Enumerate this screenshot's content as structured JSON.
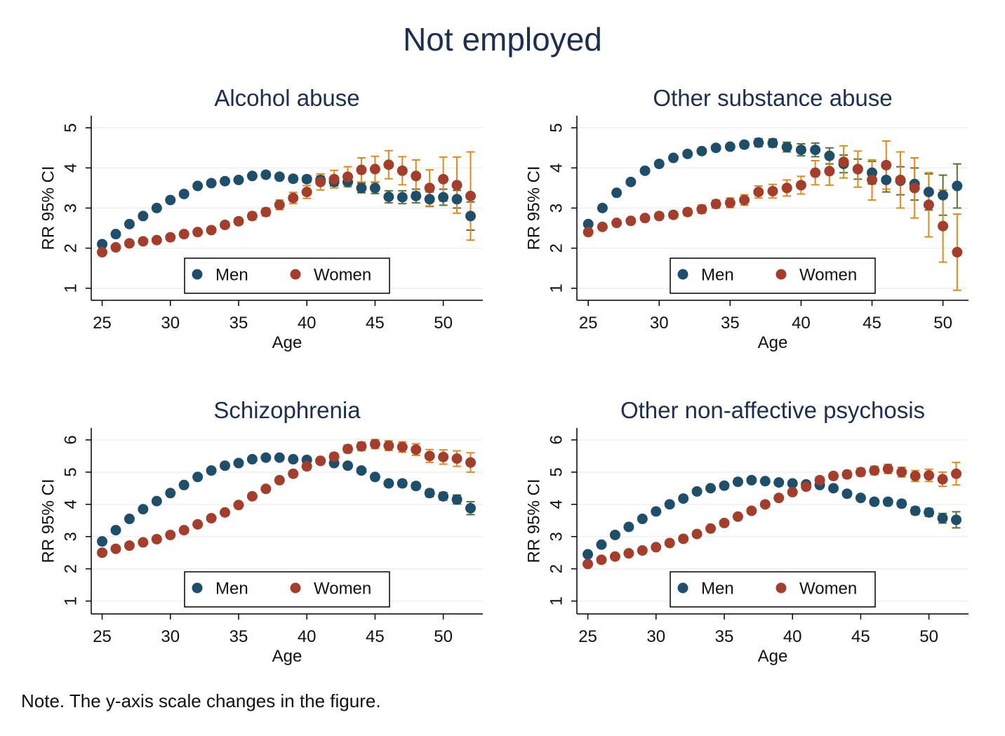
{
  "title": "Not employed",
  "note": "Note. The y-axis scale changes in the figure.",
  "chart_data": [
    {
      "type": "scatter",
      "title": "Alcohol abuse",
      "x_label": "Age",
      "y_label": "RR 95% CI",
      "x": [
        25,
        26,
        27,
        28,
        29,
        30,
        31,
        32,
        33,
        34,
        35,
        36,
        37,
        38,
        39,
        40,
        41,
        42,
        43,
        44,
        45,
        46,
        47,
        48,
        49,
        50,
        51,
        52
      ],
      "xlim": [
        24.2,
        52.9
      ],
      "xticks": [
        25,
        30,
        35,
        40,
        45,
        50
      ],
      "ylim": [
        0.7,
        5.3
      ],
      "yticks": [
        1,
        2,
        3,
        4,
        5
      ],
      "grid": true,
      "legend": "bottom",
      "series": [
        {
          "name": "Men",
          "color": "#1f4e6b",
          "error_color": "#55752f",
          "values": [
            2.1,
            2.35,
            2.6,
            2.8,
            3.0,
            3.2,
            3.35,
            3.55,
            3.62,
            3.67,
            3.7,
            3.8,
            3.83,
            3.78,
            3.73,
            3.72,
            3.7,
            3.65,
            3.65,
            3.5,
            3.5,
            3.28,
            3.27,
            3.3,
            3.22,
            3.27,
            3.22,
            2.8
          ],
          "errors": [
            0.05,
            0.05,
            0.05,
            0.05,
            0.05,
            0.05,
            0.05,
            0.05,
            0.05,
            0.05,
            0.06,
            0.06,
            0.07,
            0.07,
            0.08,
            0.08,
            0.1,
            0.1,
            0.12,
            0.12,
            0.14,
            0.15,
            0.16,
            0.17,
            0.18,
            0.2,
            0.22,
            0.35
          ]
        },
        {
          "name": "Women",
          "color": "#a33d2c",
          "error_color": "#e08a1e",
          "values": [
            1.9,
            2.02,
            2.12,
            2.17,
            2.2,
            2.27,
            2.35,
            2.4,
            2.45,
            2.58,
            2.67,
            2.8,
            2.9,
            3.08,
            3.25,
            3.4,
            3.65,
            3.72,
            3.78,
            3.95,
            3.97,
            4.08,
            3.93,
            3.8,
            3.5,
            3.72,
            3.57,
            3.3
          ],
          "errors": [
            0.04,
            0.04,
            0.04,
            0.04,
            0.05,
            0.05,
            0.05,
            0.06,
            0.06,
            0.07,
            0.08,
            0.09,
            0.1,
            0.12,
            0.14,
            0.16,
            0.2,
            0.22,
            0.25,
            0.3,
            0.32,
            0.35,
            0.35,
            0.4,
            0.45,
            0.55,
            0.7,
            1.1
          ]
        }
      ]
    },
    {
      "type": "scatter",
      "title": "Other substance abuse",
      "x_label": "Age",
      "y_label": "RR 95% CI",
      "x": [
        25,
        26,
        27,
        28,
        29,
        30,
        31,
        32,
        33,
        34,
        35,
        36,
        37,
        38,
        39,
        40,
        41,
        42,
        43,
        44,
        45,
        46,
        47,
        48,
        49,
        50,
        51
      ],
      "xlim": [
        24.2,
        51.8
      ],
      "xticks": [
        25,
        30,
        35,
        40,
        45,
        50
      ],
      "ylim": [
        0.7,
        5.3
      ],
      "yticks": [
        1,
        2,
        3,
        4,
        5
      ],
      "grid": true,
      "legend": "bottom",
      "series": [
        {
          "name": "Men",
          "color": "#1f4e6b",
          "error_color": "#55752f",
          "values": [
            2.6,
            3.0,
            3.38,
            3.65,
            3.93,
            4.1,
            4.25,
            4.35,
            4.42,
            4.5,
            4.53,
            4.58,
            4.63,
            4.62,
            4.52,
            4.45,
            4.45,
            4.3,
            4.1,
            3.97,
            3.88,
            3.7,
            3.68,
            3.6,
            3.4,
            3.32,
            3.55
          ],
          "errors": [
            0.05,
            0.05,
            0.05,
            0.05,
            0.05,
            0.05,
            0.05,
            0.05,
            0.06,
            0.06,
            0.07,
            0.08,
            0.1,
            0.1,
            0.12,
            0.15,
            0.17,
            0.2,
            0.22,
            0.25,
            0.28,
            0.3,
            0.35,
            0.4,
            0.45,
            0.5,
            0.55
          ]
        },
        {
          "name": "Women",
          "color": "#a33d2c",
          "error_color": "#e08a1e",
          "values": [
            2.4,
            2.53,
            2.63,
            2.68,
            2.75,
            2.8,
            2.83,
            2.9,
            2.97,
            3.1,
            3.13,
            3.2,
            3.4,
            3.42,
            3.5,
            3.57,
            3.88,
            3.92,
            4.15,
            3.97,
            3.7,
            4.07,
            3.7,
            3.5,
            3.08,
            2.55,
            1.9
          ],
          "errors": [
            0.06,
            0.06,
            0.06,
            0.07,
            0.07,
            0.08,
            0.08,
            0.09,
            0.1,
            0.1,
            0.12,
            0.13,
            0.15,
            0.17,
            0.2,
            0.22,
            0.3,
            0.35,
            0.4,
            0.45,
            0.5,
            0.6,
            0.7,
            0.75,
            0.8,
            0.9,
            0.95
          ]
        }
      ]
    },
    {
      "type": "scatter",
      "title": "Schizophrenia",
      "x_label": "Age",
      "y_label": "RR 95% CI",
      "x": [
        25,
        26,
        27,
        28,
        29,
        30,
        31,
        32,
        33,
        34,
        35,
        36,
        37,
        38,
        39,
        40,
        41,
        42,
        43,
        44,
        45,
        46,
        47,
        48,
        49,
        50,
        51,
        52
      ],
      "xlim": [
        24.2,
        52.9
      ],
      "xticks": [
        25,
        30,
        35,
        40,
        45,
        50
      ],
      "ylim": [
        0.6,
        6.37
      ],
      "yticks": [
        1,
        2,
        3,
        4,
        5,
        6
      ],
      "grid": true,
      "legend": "bottom",
      "series": [
        {
          "name": "Men",
          "color": "#1f4e6b",
          "error_color": "#55752f",
          "values": [
            2.85,
            3.2,
            3.55,
            3.85,
            4.1,
            4.35,
            4.6,
            4.85,
            5.05,
            5.2,
            5.28,
            5.4,
            5.45,
            5.45,
            5.4,
            5.38,
            5.35,
            5.28,
            5.2,
            5.05,
            4.85,
            4.65,
            4.65,
            4.57,
            4.35,
            4.25,
            4.15,
            3.88
          ],
          "errors": [
            0.05,
            0.05,
            0.05,
            0.05,
            0.05,
            0.05,
            0.05,
            0.05,
            0.05,
            0.05,
            0.05,
            0.05,
            0.05,
            0.05,
            0.06,
            0.06,
            0.06,
            0.07,
            0.07,
            0.08,
            0.08,
            0.09,
            0.1,
            0.1,
            0.11,
            0.12,
            0.14,
            0.2
          ]
        },
        {
          "name": "Women",
          "color": "#a33d2c",
          "error_color": "#e08a1e",
          "values": [
            2.5,
            2.62,
            2.72,
            2.82,
            2.92,
            3.05,
            3.2,
            3.38,
            3.57,
            3.75,
            3.98,
            4.25,
            4.48,
            4.75,
            4.95,
            5.18,
            5.35,
            5.48,
            5.72,
            5.8,
            5.87,
            5.82,
            5.78,
            5.7,
            5.5,
            5.47,
            5.42,
            5.3
          ],
          "errors": [
            0.05,
            0.05,
            0.05,
            0.05,
            0.05,
            0.05,
            0.05,
            0.06,
            0.06,
            0.06,
            0.07,
            0.07,
            0.08,
            0.08,
            0.09,
            0.1,
            0.1,
            0.11,
            0.12,
            0.13,
            0.14,
            0.15,
            0.16,
            0.18,
            0.2,
            0.22,
            0.24,
            0.3
          ]
        }
      ]
    },
    {
      "type": "scatter",
      "title": "Other non-affective psychosis",
      "x_label": "Age",
      "y_label": "RR 95% CI",
      "x": [
        25,
        26,
        27,
        28,
        29,
        30,
        31,
        32,
        33,
        34,
        35,
        36,
        37,
        38,
        39,
        40,
        41,
        42,
        43,
        44,
        45,
        46,
        47,
        48,
        49,
        50,
        51,
        52
      ],
      "xlim": [
        24.2,
        52.9
      ],
      "xticks": [
        25,
        30,
        35,
        40,
        45,
        50
      ],
      "ylim": [
        0.6,
        6.37
      ],
      "yticks": [
        1,
        2,
        3,
        4,
        5,
        6
      ],
      "grid": true,
      "legend": "bottom",
      "series": [
        {
          "name": "Men",
          "color": "#1f4e6b",
          "error_color": "#55752f",
          "values": [
            2.45,
            2.75,
            3.05,
            3.3,
            3.55,
            3.78,
            4.0,
            4.18,
            4.4,
            4.5,
            4.58,
            4.7,
            4.75,
            4.72,
            4.68,
            4.65,
            4.62,
            4.6,
            4.5,
            4.33,
            4.2,
            4.08,
            4.08,
            4.02,
            3.8,
            3.75,
            3.57,
            3.52
          ],
          "errors": [
            0.05,
            0.05,
            0.05,
            0.05,
            0.05,
            0.05,
            0.05,
            0.05,
            0.05,
            0.05,
            0.05,
            0.05,
            0.05,
            0.05,
            0.06,
            0.06,
            0.06,
            0.07,
            0.07,
            0.08,
            0.08,
            0.09,
            0.1,
            0.1,
            0.11,
            0.12,
            0.15,
            0.25
          ]
        },
        {
          "name": "Women",
          "color": "#a33d2c",
          "error_color": "#e08a1e",
          "values": [
            2.15,
            2.28,
            2.38,
            2.48,
            2.57,
            2.67,
            2.8,
            2.93,
            3.08,
            3.25,
            3.42,
            3.62,
            3.8,
            4.0,
            4.2,
            4.38,
            4.55,
            4.75,
            4.88,
            4.93,
            5.0,
            5.05,
            5.1,
            5.0,
            4.88,
            4.9,
            4.78,
            4.95
          ],
          "errors": [
            0.05,
            0.05,
            0.05,
            0.05,
            0.05,
            0.05,
            0.05,
            0.05,
            0.05,
            0.06,
            0.06,
            0.06,
            0.07,
            0.07,
            0.08,
            0.08,
            0.09,
            0.1,
            0.1,
            0.11,
            0.12,
            0.13,
            0.14,
            0.15,
            0.17,
            0.19,
            0.22,
            0.35
          ]
        }
      ]
    }
  ]
}
